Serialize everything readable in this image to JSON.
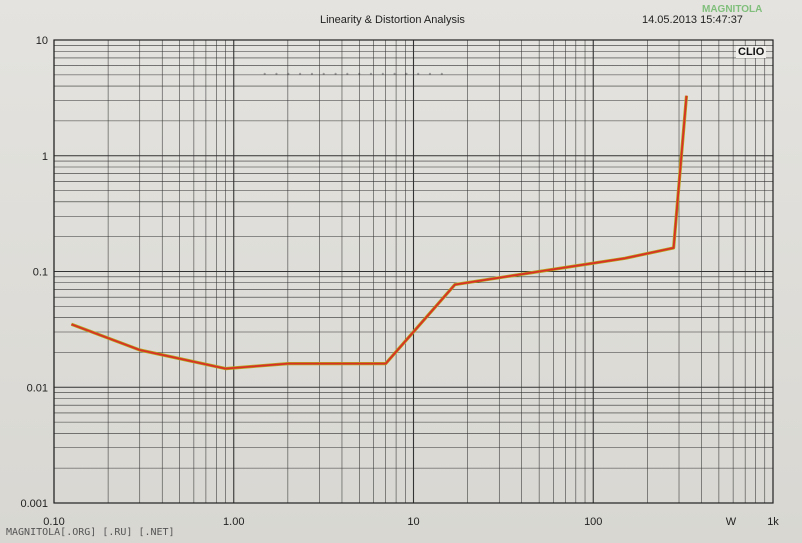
{
  "header": {
    "title": "Linearity & Distortion Analysis",
    "timestamp": "14.05.2013 15:47:37",
    "logo": "CLIO",
    "watermark_logo": "MAGNITOLA"
  },
  "footer": {
    "watermark": "MAGNITOLA[.ORG] [.RU] [.NET]"
  },
  "chart_data": {
    "type": "line",
    "title": "Linearity & Distortion Analysis",
    "x_scale": "log",
    "y_scale": "log",
    "xlim": [
      0.1,
      1000
    ],
    "ylim": [
      0.001,
      10
    ],
    "grid": true,
    "x_ticks": [
      {
        "value": 0.1,
        "label": "0.10"
      },
      {
        "value": 1,
        "label": "1.00"
      },
      {
        "value": 10,
        "label": "10"
      },
      {
        "value": 100,
        "label": "100"
      },
      {
        "value": 1000,
        "label": "1k"
      }
    ],
    "x_unit_label": "W",
    "y_ticks": [
      {
        "value": 10,
        "label": "10"
      },
      {
        "value": 1,
        "label": "1"
      },
      {
        "value": 0.1,
        "label": "0.1"
      },
      {
        "value": 0.01,
        "label": "0.01"
      },
      {
        "value": 0.001,
        "label": "0.001"
      }
    ],
    "series": [
      {
        "color": "#d93025",
        "x": [
          0.125,
          0.3,
          0.9,
          2.0,
          7.0,
          17.0,
          50.0,
          150.0,
          280.0,
          330.0
        ],
        "y": [
          0.035,
          0.021,
          0.0145,
          0.016,
          0.016,
          0.077,
          0.1,
          0.13,
          0.16,
          3.3
        ]
      }
    ]
  }
}
